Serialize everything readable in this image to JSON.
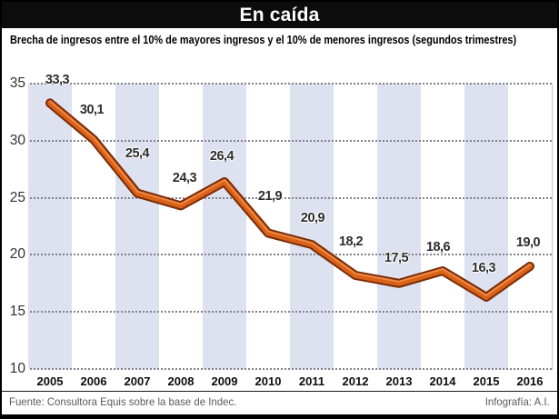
{
  "header": {
    "title": "En caída",
    "subtitle": "Brecha de ingresos entre el 10% de mayores ingresos y el 10% de menores ingresos (segundos trimestres)"
  },
  "chart_data": {
    "type": "line",
    "title": "En caída",
    "subtitle": "Brecha de ingresos entre el 10% de mayores ingresos y el 10% de menores ingresos (segundos trimestres)",
    "categories": [
      "2005",
      "2006",
      "2007",
      "2008",
      "2009",
      "2010",
      "2011",
      "2012",
      "2013",
      "2014",
      "2015",
      "2016"
    ],
    "values": [
      33.3,
      30.1,
      25.4,
      24.3,
      26.4,
      21.9,
      20.9,
      18.2,
      17.5,
      18.6,
      16.3,
      19.0
    ],
    "value_labels": [
      "33,3",
      "30,1",
      "25,4",
      "24,3",
      "26,4",
      "21,9",
      "20,9",
      "18,2",
      "17,5",
      "18,6",
      "16,3",
      "19,0"
    ],
    "xlabel": "",
    "ylabel": "",
    "ylim": [
      10,
      35
    ],
    "yticks": [
      35,
      30,
      25,
      20,
      15,
      10
    ],
    "grid": "horizontal dotted",
    "legend": "none",
    "band_pattern": "alternating vertical column shading starting at 2005",
    "colors": {
      "line": "#d96118",
      "line_outline": "#7a2b08",
      "line_highlight": "#f0914a",
      "band": "#dde1f0",
      "grid_dots": "#82828e",
      "title_bar": "#0c0c0c",
      "title_text": "#ffffff"
    }
  },
  "footer": {
    "source": "Fuente: Consultora Equis sobre la base de Indec.",
    "credit": "Infografía: A.I."
  }
}
